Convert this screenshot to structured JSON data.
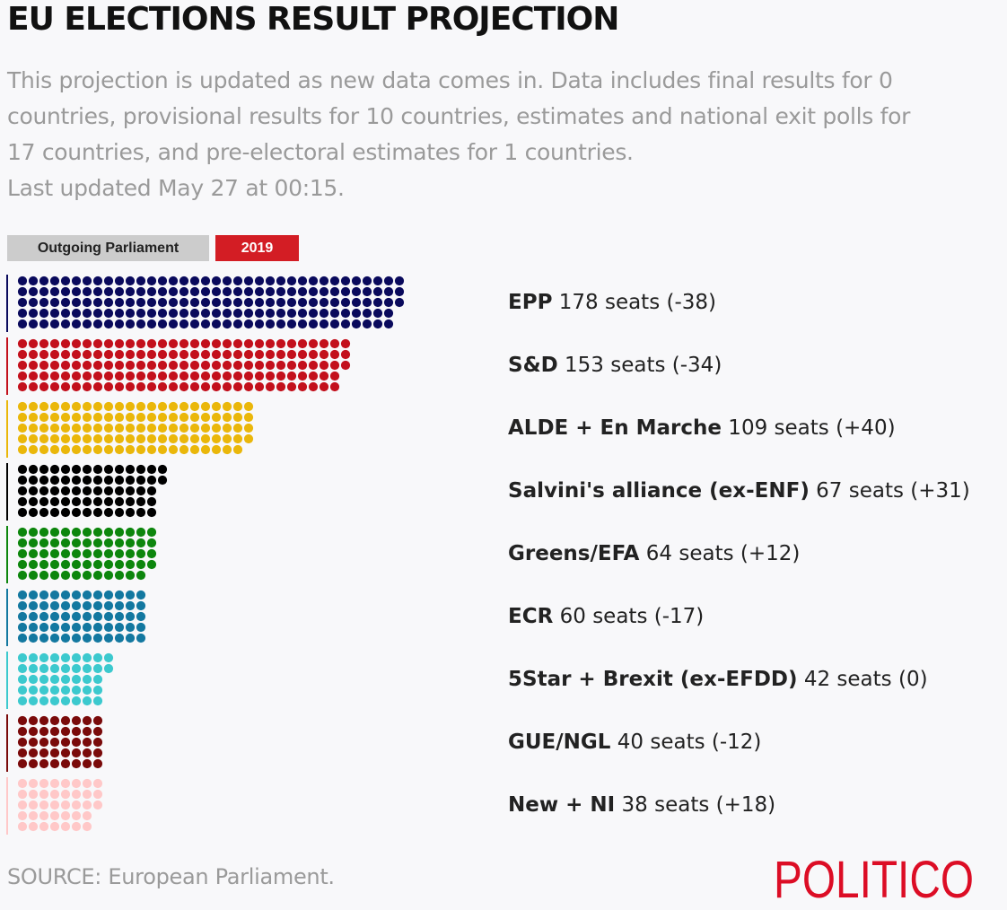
{
  "header": {
    "title": "EU ELECTIONS RESULT PROJECTION",
    "subtitle_lines": [
      "This projection is updated as new data comes in. Data includes final results for 0",
      "countries, provisional results for 10 countries, estimates and national exit polls for",
      "17 countries, and pre-electoral estimates for 1 countries.",
      "Last updated May 27 at 00:15."
    ]
  },
  "tabs": {
    "outgoing_label": "Outgoing Parliament",
    "current_label": "2019",
    "active": "2019"
  },
  "chart_data": {
    "type": "bar",
    "categories": [
      "EPP",
      "S&D",
      "ALDE + En Marche",
      "Salvini's alliance (ex-ENF)",
      "Greens/EFA",
      "ECR",
      "5Star + Brexit (ex-EFDD)",
      "GUE/NGL",
      "New + NI"
    ],
    "values": [
      178,
      153,
      109,
      67,
      64,
      60,
      42,
      40,
      38
    ],
    "parties": [
      {
        "name": "EPP",
        "seats": 178,
        "seats_text": "178 seats",
        "change_text": "(-38)",
        "color": "#0a0a5c"
      },
      {
        "name": "S&D",
        "seats": 153,
        "seats_text": "153 seats",
        "change_text": "(-34)",
        "color": "#c3101c"
      },
      {
        "name": "ALDE + En Marche",
        "seats": 109,
        "seats_text": "109 seats",
        "change_text": "(+40)",
        "color": "#eab70a"
      },
      {
        "name": "Salvini's alliance (ex-ENF)",
        "seats": 67,
        "seats_text": "67 seats",
        "change_text": "(+31)",
        "color": "#000000"
      },
      {
        "name": "Greens/EFA",
        "seats": 64,
        "seats_text": "64 seats",
        "change_text": "(+12)",
        "color": "#0d860d"
      },
      {
        "name": "ECR",
        "seats": 60,
        "seats_text": "60 seats",
        "change_text": "(-17)",
        "color": "#1378a0"
      },
      {
        "name": "5Star + Brexit (ex-EFDD)",
        "seats": 42,
        "seats_text": "42 seats",
        "change_text": "(0)",
        "color": "#3cc9ce"
      },
      {
        "name": "GUE/NGL",
        "seats": 40,
        "seats_text": "40 seats",
        "change_text": "(-12)",
        "color": "#7a0a0a"
      },
      {
        "name": "New + NI",
        "seats": 38,
        "seats_text": "38 seats",
        "change_text": "(+18)",
        "color": "#ffc8c8"
      }
    ]
  },
  "footer": {
    "source": "SOURCE: European Parliament.",
    "logo_text": "POLITICO",
    "logo_color": "#dc0d25"
  }
}
